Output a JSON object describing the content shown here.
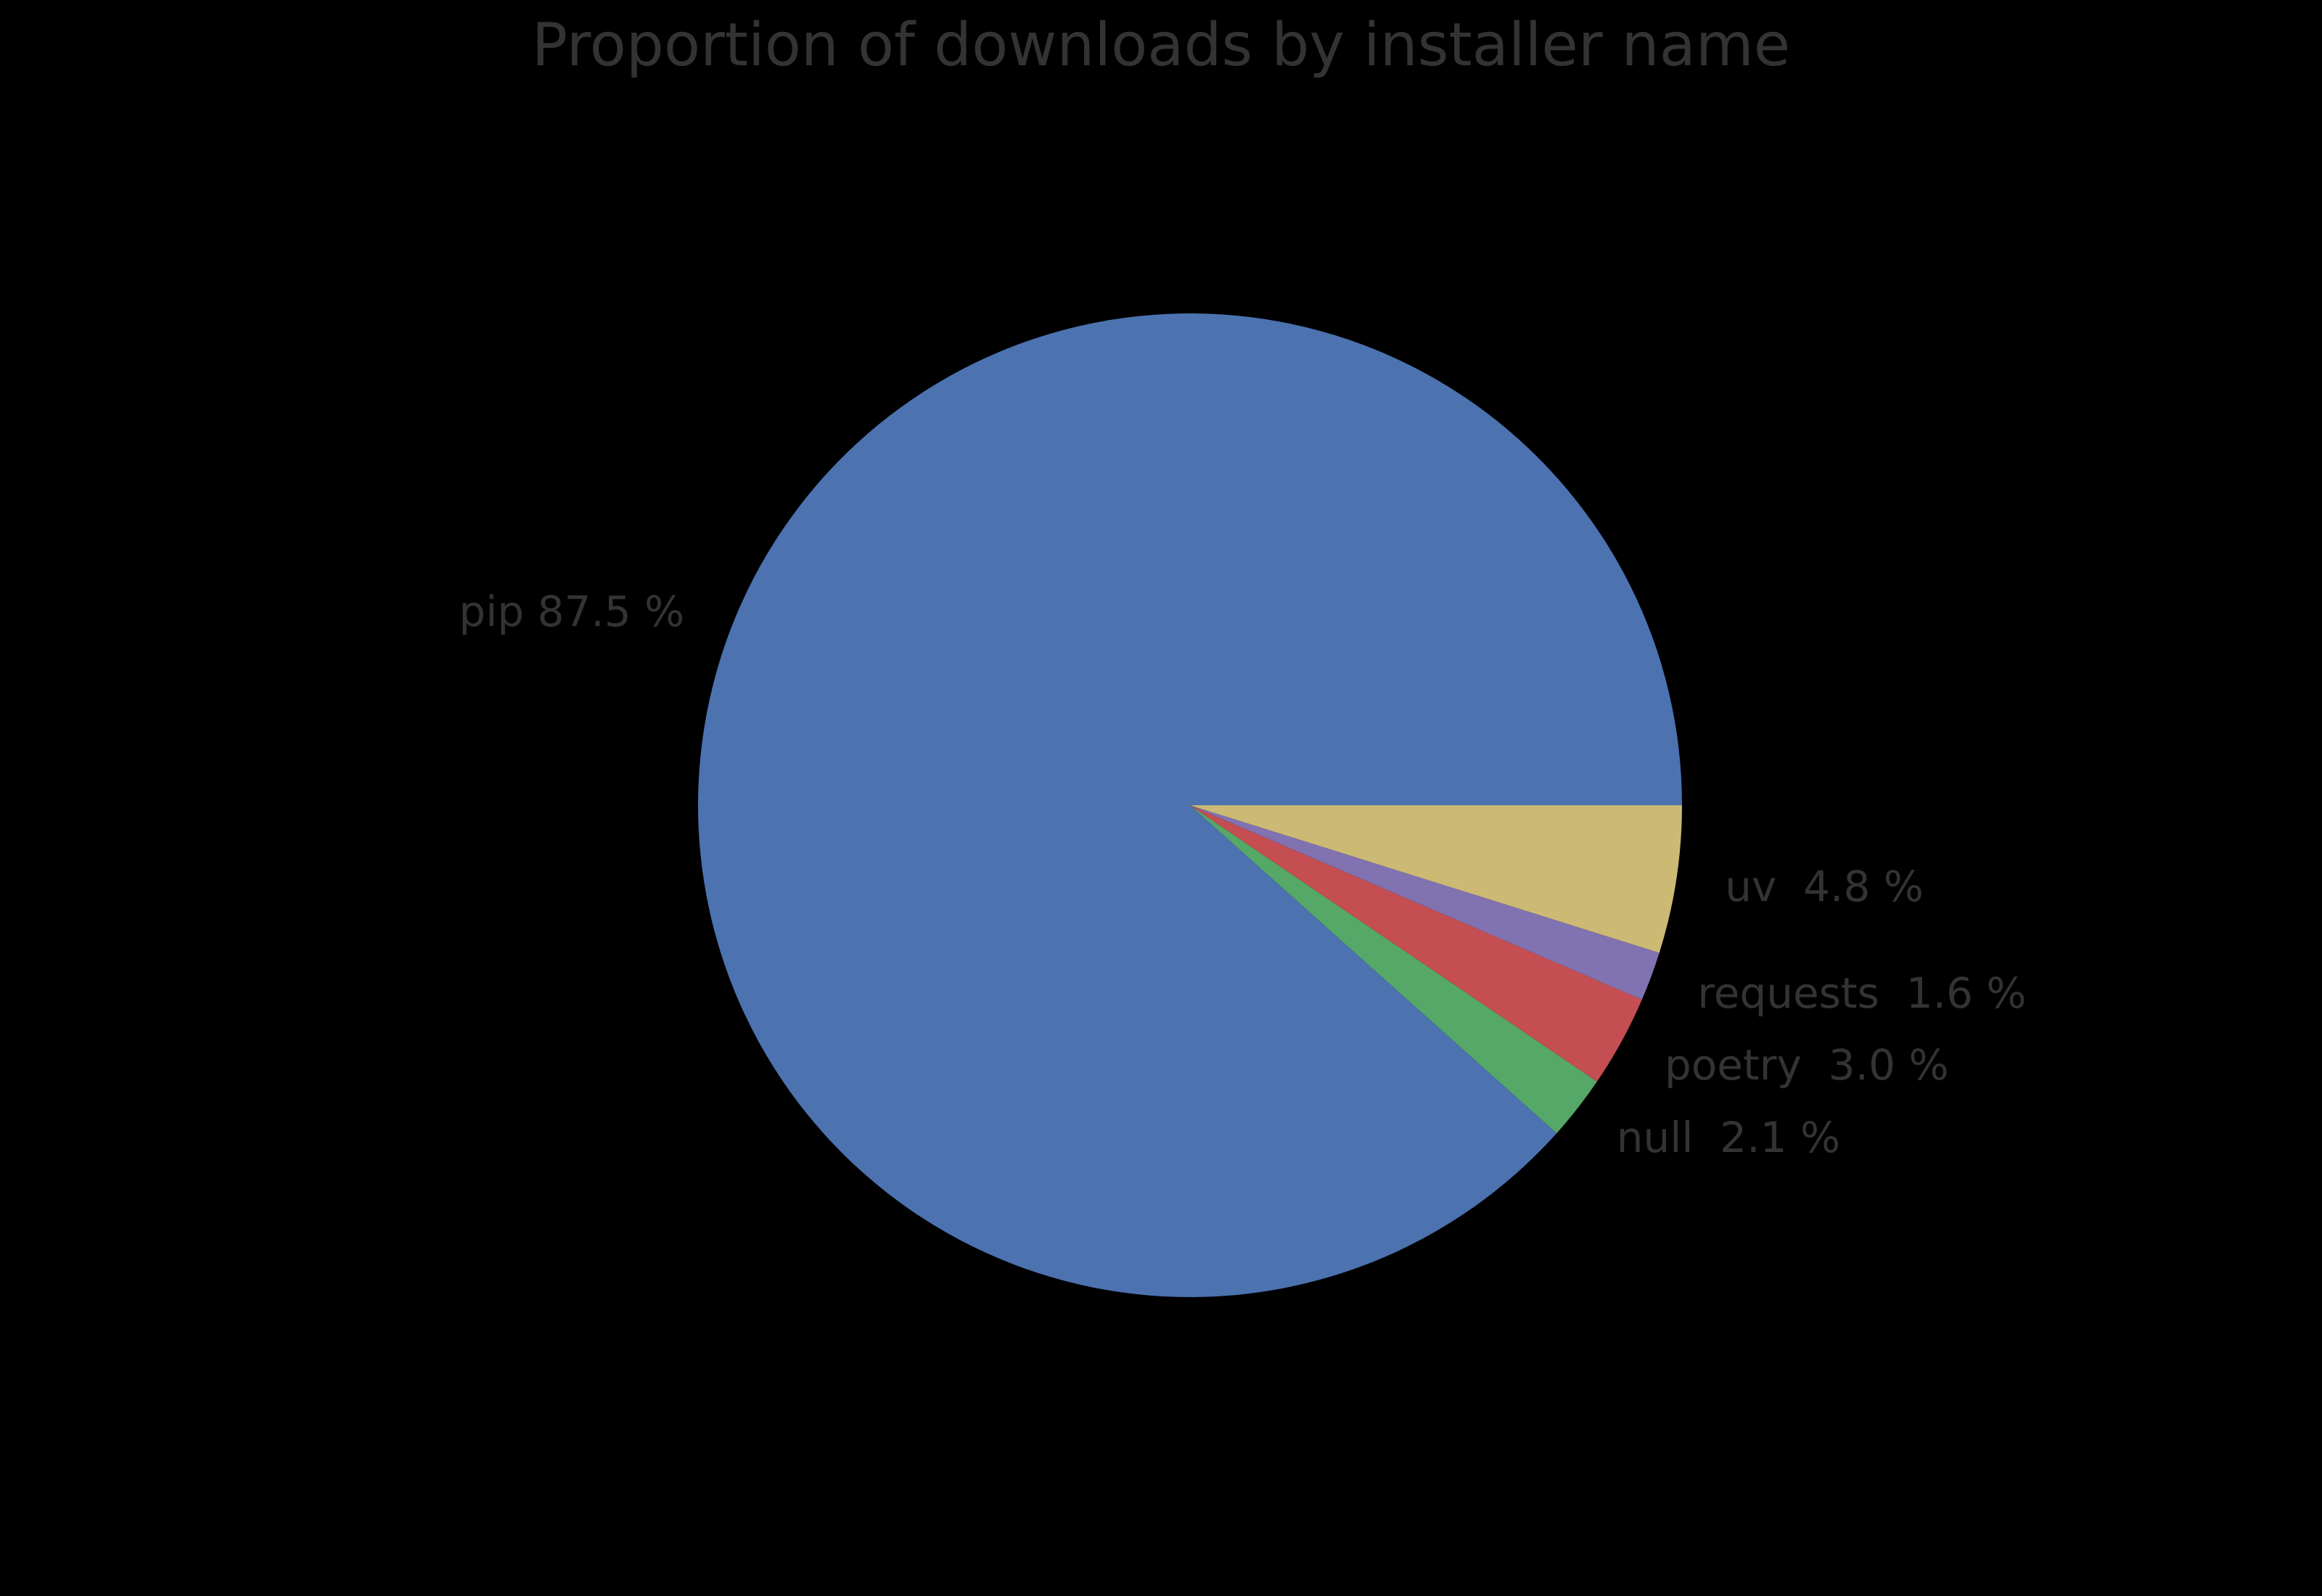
{
  "page": {
    "background_color": "#000000",
    "text_color": "#333333"
  },
  "chart_data": {
    "type": "pie",
    "title": "Proportion of downloads by installer name",
    "start_angle_deg": 0,
    "direction": "counterclockwise",
    "label_radius_ratio": 1.1,
    "slices": [
      {
        "label": "pip",
        "value": 87.5,
        "display": "pip 87.5 %",
        "color": "#4C72B0"
      },
      {
        "label": "null",
        "value": 2.1,
        "display": "null  2.1 %",
        "color": "#55A868"
      },
      {
        "label": "poetry",
        "value": 3.0,
        "display": "poetry  3.0 %",
        "color": "#C44E52"
      },
      {
        "label": "requests",
        "value": 1.6,
        "display": "requests  1.6 %",
        "color": "#8172B2"
      },
      {
        "label": "uv",
        "value": 4.8,
        "display": "uv  4.8 %",
        "color": "#CCB974"
      }
    ]
  }
}
